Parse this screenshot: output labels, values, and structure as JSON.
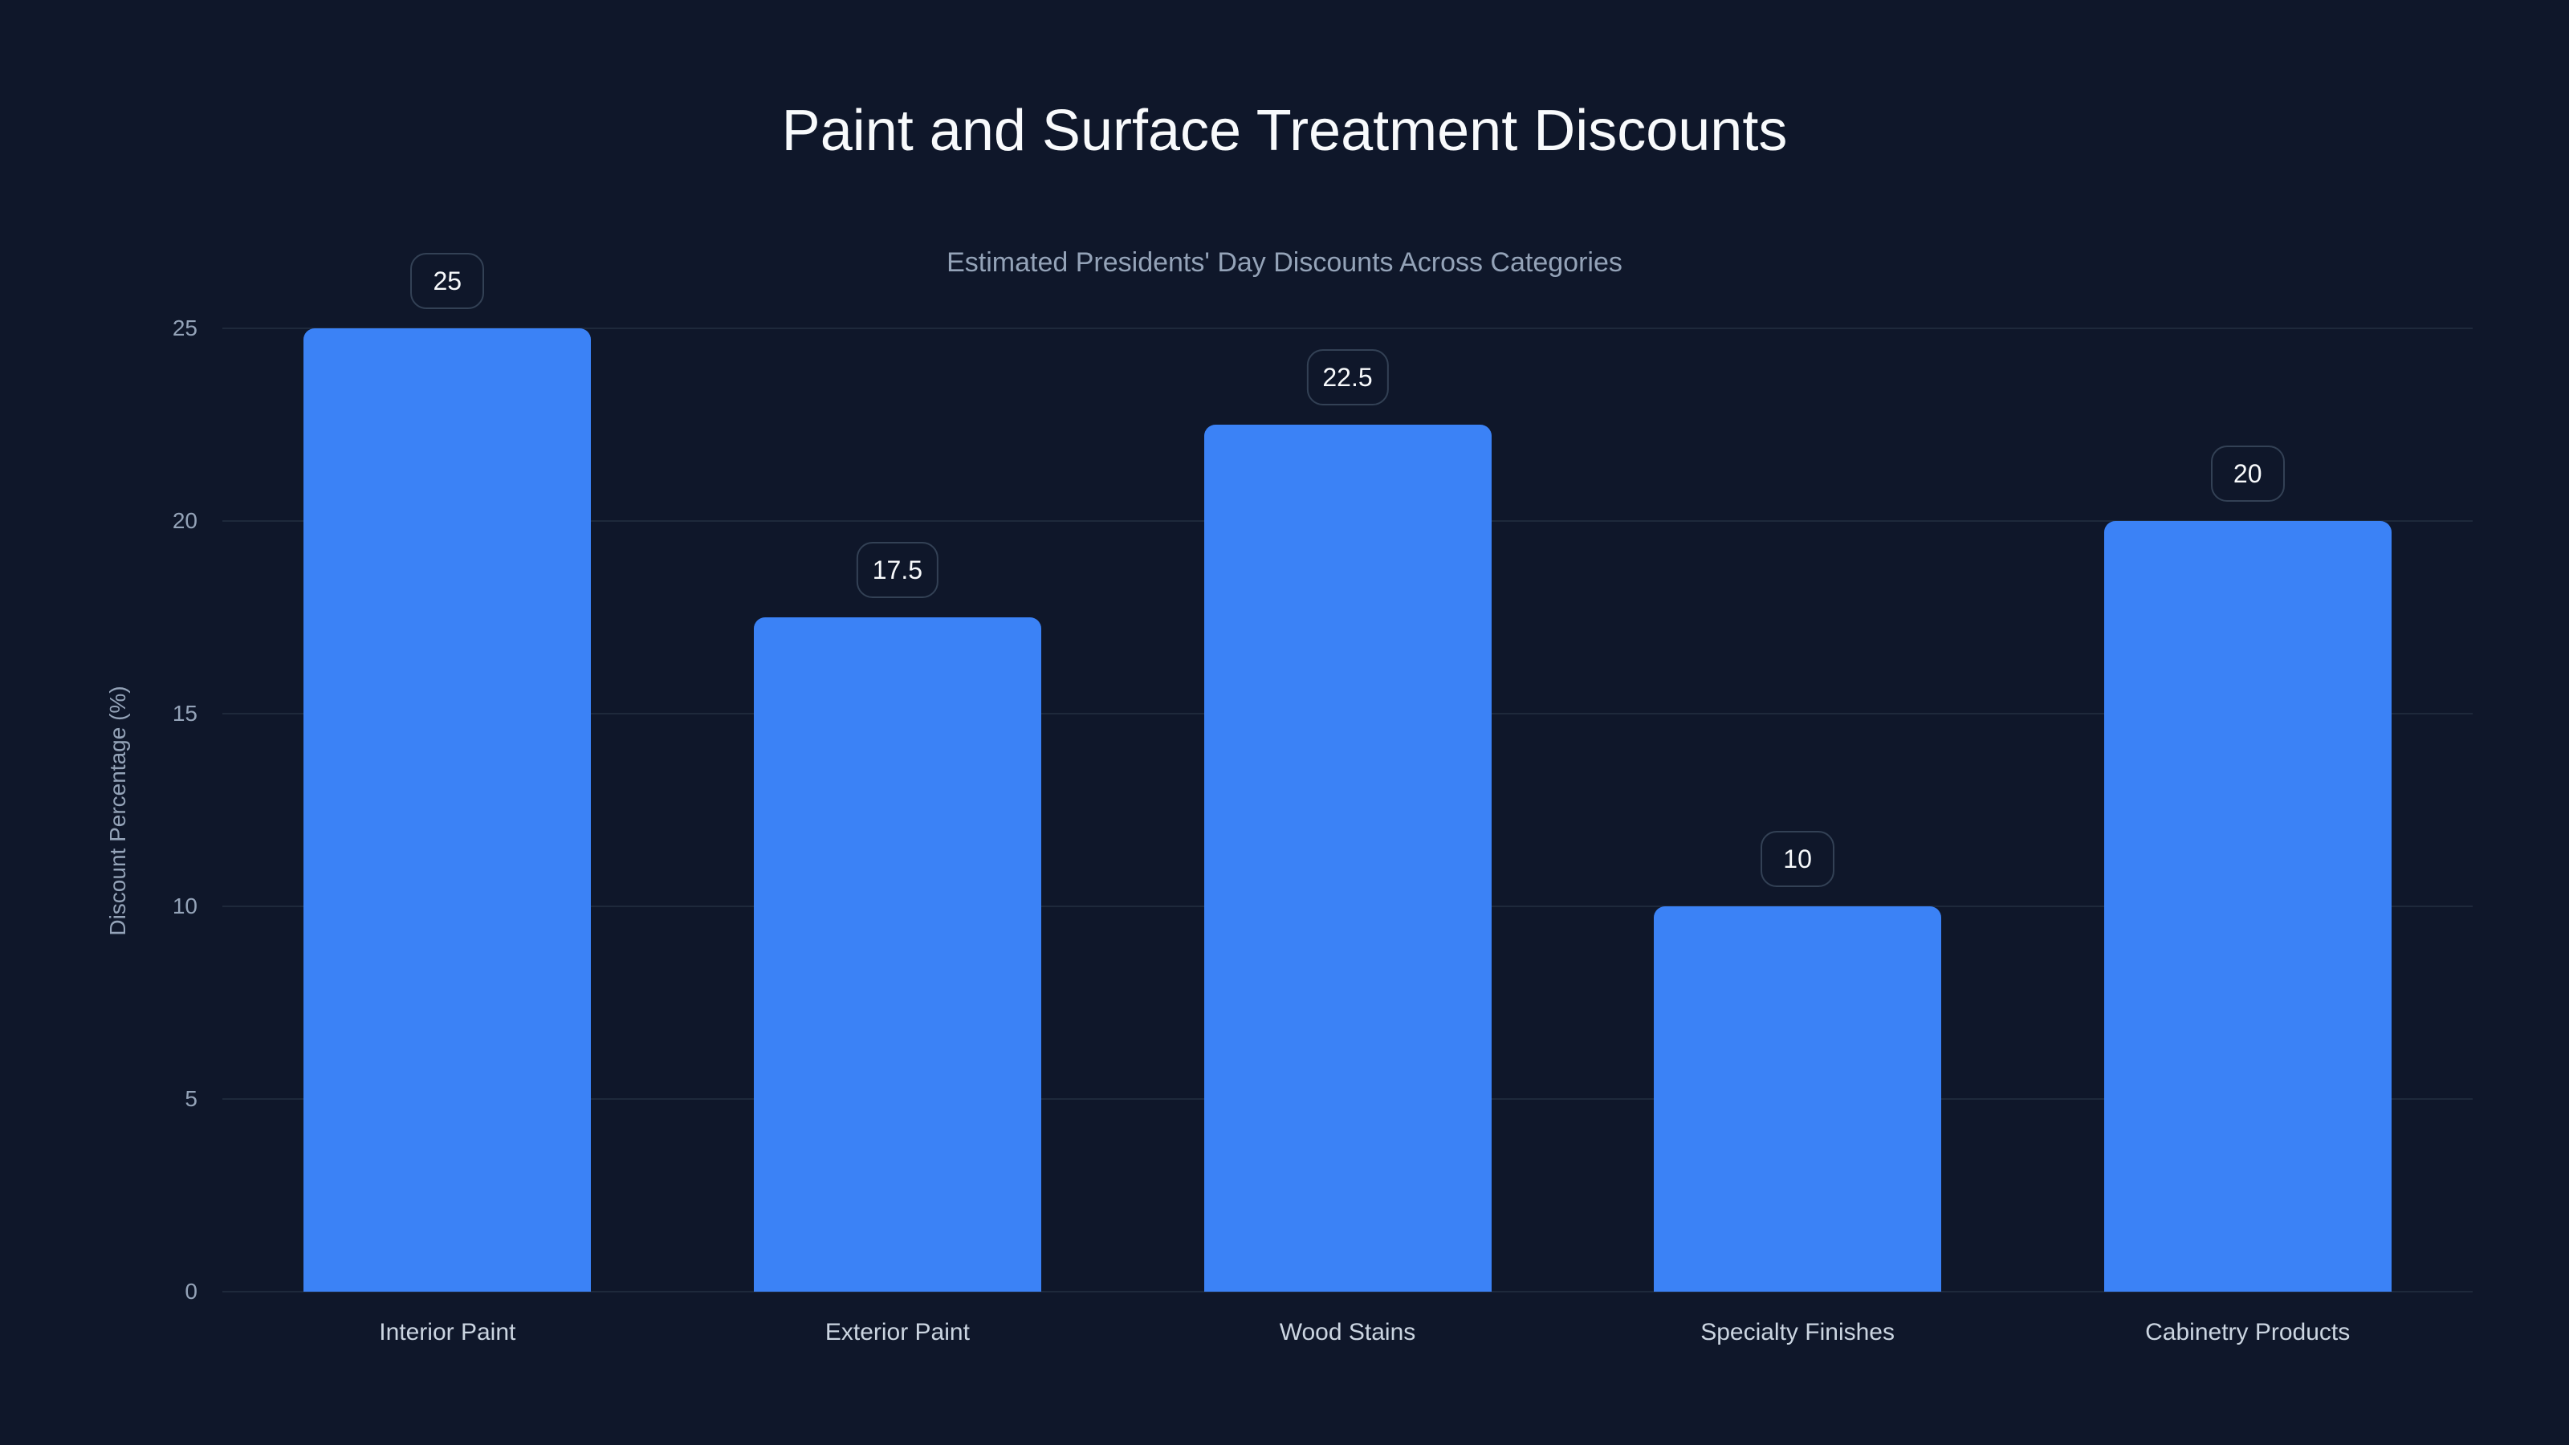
{
  "header": {
    "title": "Paint and Surface Treatment Discounts",
    "subtitle": "Estimated Presidents' Day Discounts Across Categories"
  },
  "axes": {
    "ylabel": "Discount Percentage (%)",
    "yticks": [
      "0",
      "5",
      "10",
      "15",
      "20",
      "25"
    ]
  },
  "bars": [
    {
      "category": "Interior Paint",
      "value": 25,
      "label": "25"
    },
    {
      "category": "Exterior Paint",
      "value": 17.5,
      "label": "17.5"
    },
    {
      "category": "Wood Stains",
      "value": 22.5,
      "label": "22.5"
    },
    {
      "category": "Specialty Finishes",
      "value": 10,
      "label": "10"
    },
    {
      "category": "Cabinetry Products",
      "value": 20,
      "label": "20"
    }
  ],
  "colors": {
    "background": "#0f172a",
    "bar": "#3b82f6",
    "grid": "#1e293b",
    "label_border": "#334155"
  },
  "chart_data": {
    "type": "bar",
    "title": "Paint and Surface Treatment Discounts",
    "subtitle": "Estimated Presidents' Day Discounts Across Categories",
    "categories": [
      "Interior Paint",
      "Exterior Paint",
      "Wood Stains",
      "Specialty Finishes",
      "Cabinetry Products"
    ],
    "values": [
      25,
      17.5,
      22.5,
      10,
      20
    ],
    "xlabel": "",
    "ylabel": "Discount Percentage (%)",
    "ylim": [
      0,
      25
    ],
    "yticks": [
      0,
      5,
      10,
      15,
      20,
      25
    ],
    "grid": true,
    "legend": null,
    "data_labels": true
  }
}
